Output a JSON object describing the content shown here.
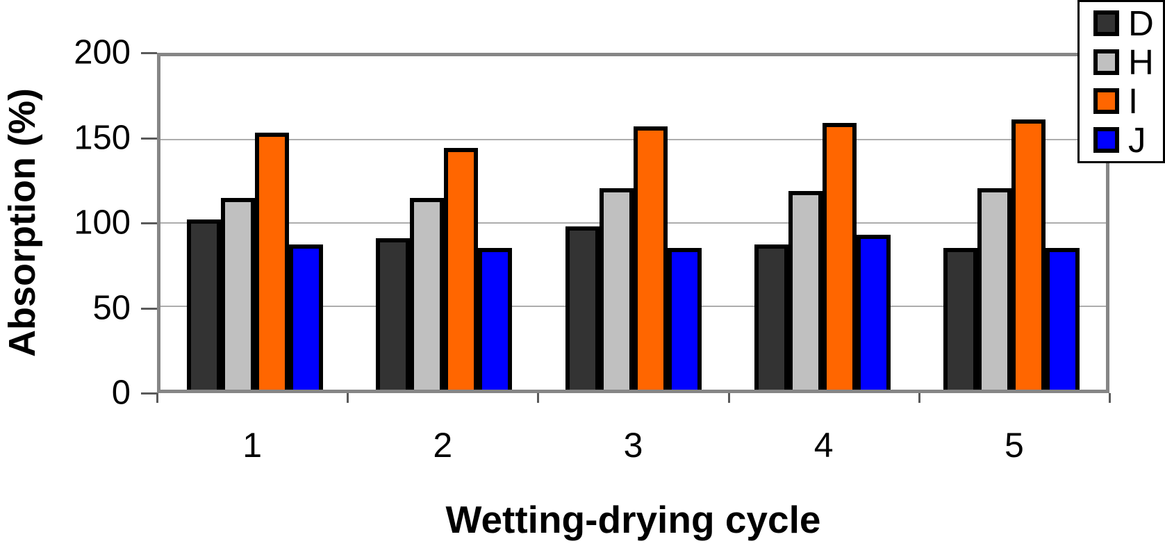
{
  "chart_data": {
    "type": "bar",
    "title": "",
    "xlabel": "Wetting-drying cycle",
    "ylabel": "Absorption (%)",
    "categories": [
      "1",
      "2",
      "3",
      "4",
      "5"
    ],
    "series": [
      {
        "name": "D",
        "color": "#333333",
        "values": [
          102,
          91,
          98,
          87,
          85
        ]
      },
      {
        "name": "H",
        "color": "#c0c0c0",
        "values": [
          115,
          115,
          121,
          119,
          121
        ]
      },
      {
        "name": "I",
        "color": "#ff6600",
        "values": [
          154,
          145,
          158,
          160,
          162
        ]
      },
      {
        "name": "J",
        "color": "#0000ff",
        "values": [
          87,
          85,
          85,
          93,
          85
        ]
      }
    ],
    "ylim": [
      0,
      200
    ],
    "yticks": [
      0,
      50,
      100,
      150,
      200
    ],
    "grid": true,
    "legend_position": "top-right"
  }
}
